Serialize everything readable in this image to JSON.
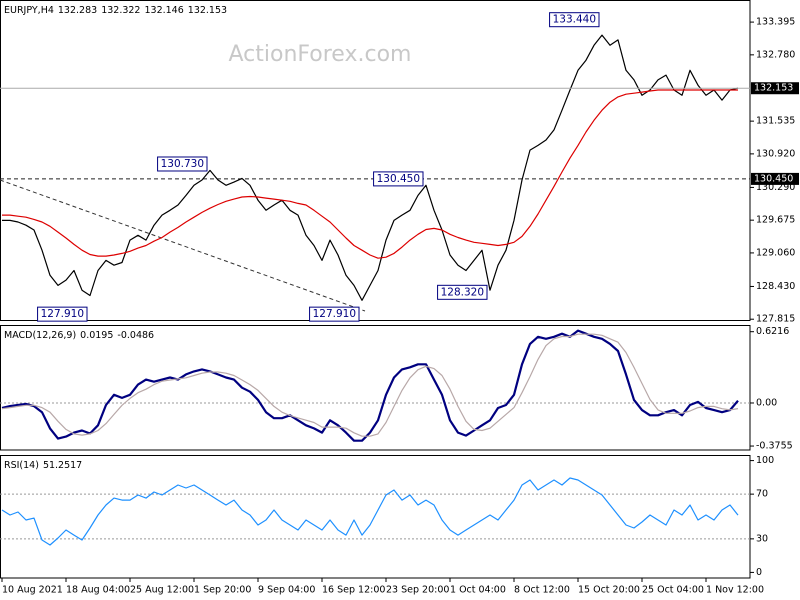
{
  "chart_data": [
    {
      "type": "line",
      "title": "EURJPY,H4",
      "ohlc": [
        132.283,
        132.322,
        132.146,
        132.153
      ],
      "watermark": "ActionForex.com",
      "x": [
        0,
        1,
        2,
        3,
        4,
        5,
        6,
        7,
        8,
        9,
        10,
        11,
        12,
        13,
        14,
        15,
        16,
        17,
        18,
        19,
        20,
        21,
        22,
        23,
        24,
        25,
        26,
        27,
        28,
        29,
        30,
        31,
        32,
        33,
        34,
        35,
        36,
        37,
        38,
        39,
        40,
        41,
        42,
        43,
        44,
        45,
        46,
        47,
        48,
        49,
        50,
        51,
        52,
        53,
        54,
        55,
        56,
        57,
        58,
        59,
        60,
        61,
        62,
        63,
        64,
        65,
        66,
        67,
        68,
        69,
        70,
        71,
        72,
        73,
        74,
        75,
        76,
        77,
        78,
        79,
        80,
        81,
        82,
        83,
        84,
        85,
        86,
        87,
        88,
        89,
        90,
        91,
        92
      ],
      "xlim": [
        0,
        93.5
      ],
      "ylim": [
        127.8,
        133.81
      ],
      "yticks": [
        133.395,
        {
          "value": 132.78,
          "label": "132.780"
        },
        131.535,
        {
          "value": 130.92,
          "label": "130.920"
        },
        {
          "value": 130.29,
          "label": "130.290"
        },
        129.675,
        {
          "value": 129.06,
          "label": "129.060"
        },
        {
          "value": 128.43,
          "label": "128.430"
        },
        127.815
      ],
      "series": [
        {
          "color": "#000000",
          "values": [
            129.67,
            129.67,
            129.64,
            129.58,
            129.49,
            129.11,
            128.64,
            128.45,
            128.55,
            128.73,
            128.36,
            128.26,
            128.73,
            128.92,
            128.83,
            128.88,
            129.3,
            129.39,
            129.3,
            129.58,
            129.77,
            129.86,
            129.96,
            130.14,
            130.33,
            130.43,
            130.61,
            130.43,
            130.33,
            130.39,
            130.46,
            130.33,
            130.05,
            129.86,
            129.96,
            130.05,
            129.86,
            129.77,
            129.39,
            129.2,
            128.92,
            129.3,
            129.02,
            128.64,
            128.45,
            128.17,
            128.45,
            128.73,
            129.3,
            129.67,
            129.77,
            129.86,
            130.14,
            130.33,
            129.86,
            129.49,
            129.02,
            128.83,
            128.73,
            128.92,
            129.11,
            128.36,
            128.83,
            129.11,
            129.67,
            130.43,
            130.99,
            131.08,
            131.18,
            131.37,
            131.74,
            132.12,
            132.49,
            132.68,
            132.96,
            133.15,
            132.96,
            133.06,
            132.49,
            132.31,
            132.02,
            132.12,
            132.31,
            132.4,
            132.12,
            132.02,
            132.49,
            132.21,
            132.02,
            132.12,
            131.93,
            132.12,
            132.153
          ]
        },
        {
          "color": "#dd0000",
          "values": [
            129.77,
            129.77,
            129.75,
            129.73,
            129.69,
            129.64,
            129.56,
            129.45,
            129.34,
            129.22,
            129.11,
            129.03,
            129.0,
            129.0,
            129.02,
            129.05,
            129.09,
            129.15,
            129.2,
            129.28,
            129.35,
            129.45,
            129.54,
            129.64,
            129.73,
            129.82,
            129.9,
            129.97,
            130.03,
            130.07,
            130.11,
            130.12,
            130.11,
            130.09,
            130.07,
            130.05,
            130.03,
            129.99,
            129.96,
            129.86,
            129.75,
            129.64,
            129.49,
            129.34,
            129.2,
            129.11,
            129.02,
            128.96,
            128.98,
            129.05,
            129.17,
            129.3,
            129.41,
            129.5,
            129.52,
            129.49,
            129.41,
            129.35,
            129.3,
            129.26,
            129.24,
            129.22,
            129.2,
            129.22,
            129.26,
            129.37,
            129.56,
            129.79,
            130.05,
            130.31,
            130.58,
            130.84,
            131.08,
            131.33,
            131.55,
            131.74,
            131.89,
            131.99,
            132.04,
            132.06,
            132.08,
            132.1,
            132.12,
            132.12,
            132.12,
            132.12,
            132.12,
            132.12,
            132.12,
            132.12,
            132.12,
            132.12,
            132.12
          ]
        }
      ],
      "annotations": [
        {
          "x": 75,
          "value": 133.44,
          "label": "133.440"
        },
        {
          "x": 26,
          "value": 130.73,
          "label": "130.730"
        },
        {
          "x": 53,
          "value": 130.45,
          "label": "130.450"
        },
        {
          "x": 11,
          "value": 127.91,
          "label": "127.910"
        },
        {
          "x": 45,
          "value": 127.91,
          "label": "127.910"
        },
        {
          "x": 61,
          "value": 128.32,
          "label": "128.320"
        }
      ],
      "levels": [
        {
          "value": 130.45,
          "label": "130.450"
        }
      ]
    },
    {
      "type": "line",
      "title": "MACD(12,26,9)",
      "x": [
        0,
        1,
        2,
        3,
        4,
        5,
        6,
        7,
        8,
        9,
        10,
        11,
        12,
        13,
        14,
        15,
        16,
        17,
        18,
        19,
        20,
        21,
        22,
        23,
        24,
        25,
        26,
        27,
        28,
        29,
        30,
        31,
        32,
        33,
        34,
        35,
        36,
        37,
        38,
        39,
        40,
        41,
        42,
        43,
        44,
        45,
        46,
        47,
        48,
        49,
        50,
        51,
        52,
        53,
        54,
        55,
        56,
        57,
        58,
        59,
        60,
        61,
        62,
        63,
        64,
        65,
        66,
        67,
        68,
        69,
        70,
        71,
        72,
        73,
        74,
        75,
        76,
        77,
        78,
        79,
        80,
        81,
        82,
        83,
        84,
        85,
        86,
        87,
        88,
        89,
        90,
        91,
        92
      ],
      "xlim": [
        0,
        93.5
      ],
      "ylim": [
        -0.41,
        0.68
      ],
      "yticks": [
        0.6216,
        {
          "value": 0,
          "label": "0.00"
        },
        -0.3755
      ],
      "series": [
        {
          "color": "#000080",
          "values": [
            -0.044,
            -0.027,
            -0.018,
            -0.009,
            -0.027,
            -0.08,
            -0.222,
            -0.311,
            -0.293,
            -0.258,
            -0.24,
            -0.266,
            -0.195,
            -0.018,
            0.071,
            0.044,
            0.071,
            0.16,
            0.204,
            0.186,
            0.204,
            0.222,
            0.204,
            0.249,
            0.275,
            0.293,
            0.275,
            0.249,
            0.222,
            0.204,
            0.133,
            0.098,
            0.027,
            -0.08,
            -0.133,
            -0.133,
            -0.107,
            -0.151,
            -0.195,
            -0.222,
            -0.258,
            -0.151,
            -0.195,
            -0.258,
            -0.329,
            -0.329,
            -0.258,
            -0.151,
            0.071,
            0.222,
            0.293,
            0.311,
            0.337,
            0.337,
            0.204,
            0.071,
            -0.151,
            -0.258,
            -0.284,
            -0.24,
            -0.195,
            -0.151,
            -0.044,
            -0.018,
            0.071,
            0.337,
            0.515,
            0.577,
            0.56,
            0.577,
            0.604,
            0.577,
            0.631,
            0.604,
            0.577,
            0.56,
            0.515,
            0.453,
            0.249,
            0.027,
            -0.062,
            -0.107,
            -0.107,
            -0.08,
            -0.062,
            -0.107,
            -0.018,
            0.009,
            -0.044,
            -0.062,
            -0.08,
            -0.062,
            0.0195
          ]
        },
        {
          "color": "#b8a8a8",
          "values": [
            -0.05,
            -0.04,
            -0.03,
            -0.02,
            -0.02,
            -0.04,
            -0.08,
            -0.16,
            -0.23,
            -0.27,
            -0.28,
            -0.27,
            -0.24,
            -0.18,
            -0.1,
            -0.02,
            0.04,
            0.09,
            0.12,
            0.16,
            0.19,
            0.2,
            0.21,
            0.22,
            0.24,
            0.26,
            0.27,
            0.27,
            0.26,
            0.24,
            0.2,
            0.16,
            0.11,
            0.04,
            -0.03,
            -0.08,
            -0.11,
            -0.13,
            -0.15,
            -0.17,
            -0.21,
            -0.21,
            -0.21,
            -0.22,
            -0.26,
            -0.29,
            -0.29,
            -0.27,
            -0.17,
            -0.03,
            0.11,
            0.22,
            0.29,
            0.32,
            0.3,
            0.24,
            0.12,
            -0.03,
            -0.16,
            -0.23,
            -0.24,
            -0.22,
            -0.16,
            -0.1,
            -0.04,
            0.09,
            0.23,
            0.38,
            0.5,
            0.56,
            0.58,
            0.58,
            0.6,
            0.6,
            0.6,
            0.59,
            0.56,
            0.53,
            0.44,
            0.31,
            0.17,
            0.03,
            -0.06,
            -0.09,
            -0.09,
            -0.09,
            -0.07,
            -0.04,
            -0.03,
            -0.03,
            -0.05,
            -0.06,
            -0.0486
          ]
        }
      ],
      "levels": [
        {
          "value": 0
        }
      ]
    },
    {
      "type": "line",
      "title": "RSI(14)",
      "x": [
        0,
        1,
        2,
        3,
        4,
        5,
        6,
        7,
        8,
        9,
        10,
        11,
        12,
        13,
        14,
        15,
        16,
        17,
        18,
        19,
        20,
        21,
        22,
        23,
        24,
        25,
        26,
        27,
        28,
        29,
        30,
        31,
        32,
        33,
        34,
        35,
        36,
        37,
        38,
        39,
        40,
        41,
        42,
        43,
        44,
        45,
        46,
        47,
        48,
        49,
        50,
        51,
        52,
        53,
        54,
        55,
        56,
        57,
        58,
        59,
        60,
        61,
        62,
        63,
        64,
        65,
        66,
        67,
        68,
        69,
        70,
        71,
        72,
        73,
        74,
        75,
        76,
        77,
        78,
        79,
        80,
        81,
        82,
        83,
        84,
        85,
        86,
        87,
        88,
        89,
        90,
        91,
        92
      ],
      "xlim": [
        0,
        93.5
      ],
      "ylim": [
        -5,
        105
      ],
      "yticks": [
        100,
        70,
        30,
        0
      ],
      "xticks": [
        {
          "value": 0,
          "label": "10 Aug 2021"
        },
        {
          "value": 8,
          "label": "18 Aug 04:00"
        },
        {
          "value": 16,
          "label": "25 Aug 12:00"
        },
        {
          "value": 24,
          "label": "1 Sep 20:00"
        },
        {
          "value": 32,
          "label": "9 Sep 04:00"
        },
        {
          "value": 40,
          "label": "16 Sep 12:00"
        },
        {
          "value": 48,
          "label": "23 Sep 20:00"
        },
        {
          "value": 56,
          "label": "1 Oct 04:00"
        },
        {
          "value": 64,
          "label": "8 Oct 12:00"
        },
        {
          "value": 72,
          "label": "15 Oct 20:00"
        },
        {
          "value": 80,
          "label": "25 Oct 04:00"
        },
        {
          "value": 88,
          "label": "1 Nov 12:00"
        }
      ],
      "series": [
        {
          "color": "#1e90ff",
          "values": [
            55.8,
            51.3,
            54.0,
            46.9,
            48.6,
            29.0,
            24.5,
            30.8,
            37.9,
            33.4,
            29.0,
            39.7,
            51.3,
            60.3,
            66.5,
            64.7,
            64.7,
            69.2,
            66.5,
            71.9,
            69.2,
            73.7,
            78.2,
            75.5,
            78.2,
            73.7,
            69.2,
            64.7,
            60.3,
            64.7,
            55.8,
            51.3,
            42.4,
            46.9,
            55.8,
            46.9,
            42.4,
            37.9,
            46.9,
            42.4,
            37.9,
            46.9,
            37.9,
            33.4,
            46.9,
            33.4,
            42.4,
            55.8,
            69.2,
            73.7,
            64.7,
            69.2,
            60.3,
            64.7,
            60.3,
            46.9,
            37.9,
            33.4,
            37.9,
            42.4,
            46.9,
            51.3,
            46.9,
            55.8,
            64.7,
            78.2,
            82.6,
            73.7,
            78.2,
            82.6,
            78.2,
            84.4,
            82.6,
            78.2,
            73.7,
            69.2,
            60.3,
            51.3,
            42.4,
            39.7,
            45.1,
            51.3,
            46.9,
            42.4,
            55.8,
            51.3,
            60.3,
            46.9,
            51.3,
            46.9,
            55.8,
            60.3,
            51.2517
          ]
        }
      ],
      "levels": [
        70,
        30
      ]
    }
  ]
}
